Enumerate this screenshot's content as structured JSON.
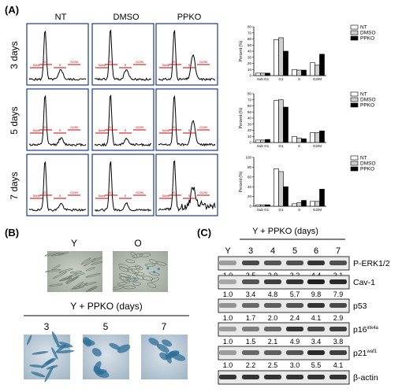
{
  "panel_labels": {
    "a": "(A)",
    "b": "(B)",
    "c": "(C)"
  },
  "panel_a": {
    "conditions": [
      "NT",
      "DMSO",
      "PPKO"
    ],
    "timepoints": [
      "3 days",
      "5 days",
      "7 days"
    ],
    "flow_gate_labels": [
      "Subs",
      "G1",
      "S",
      "G2/M"
    ]
  },
  "chart_data": [
    {
      "type": "bar",
      "panel": "A-3days",
      "title": "",
      "categories": [
        "Sub G1",
        "G1",
        "S",
        "G2/M"
      ],
      "ylabel": "Percent (%)",
      "xlabel": "",
      "ylim": [
        0,
        80
      ],
      "yticks": [
        "0",
        "10",
        "20",
        "30",
        "40",
        "50",
        "60",
        "70",
        "80"
      ],
      "legend": "top-right",
      "series": [
        {
          "name": "NT",
          "color": "#ffffff",
          "values": [
            4,
            59,
            10,
            21
          ]
        },
        {
          "name": "DMSO",
          "color": "#d0d0d0",
          "values": [
            4,
            62,
            9,
            17
          ]
        },
        {
          "name": "PPKO",
          "color": "#000000",
          "values": [
            4,
            40,
            9,
            35
          ]
        }
      ]
    },
    {
      "type": "bar",
      "panel": "A-5days",
      "title": "",
      "categories": [
        "Sub G1",
        "G1",
        "S",
        "G2/M"
      ],
      "ylabel": "Percent (%)",
      "xlabel": "",
      "ylim": [
        0,
        80
      ],
      "yticks": [
        "0",
        "10",
        "20",
        "30",
        "40",
        "50",
        "60",
        "70",
        "80"
      ],
      "legend": "top-right",
      "series": [
        {
          "name": "NT",
          "color": "#ffffff",
          "values": [
            4,
            69,
            10,
            16
          ]
        },
        {
          "name": "DMSO",
          "color": "#d0d0d0",
          "values": [
            4,
            70,
            7,
            16
          ]
        },
        {
          "name": "PPKO",
          "color": "#000000",
          "values": [
            5,
            58,
            6,
            19
          ]
        }
      ]
    },
    {
      "type": "bar",
      "panel": "A-7days",
      "title": "",
      "categories": [
        "Sub G1",
        "G1",
        "S",
        "G2/M"
      ],
      "ylabel": "Percent (%)",
      "xlabel": "",
      "ylim": [
        0,
        100
      ],
      "yticks": [
        "0",
        "20",
        "40",
        "60",
        "80",
        "100"
      ],
      "legend": "top-right",
      "series": [
        {
          "name": "NT",
          "color": "#ffffff",
          "values": [
            3,
            77,
            5,
            10
          ]
        },
        {
          "name": "DMSO",
          "color": "#d0d0d0",
          "values": [
            3,
            71,
            7,
            10
          ]
        },
        {
          "name": "PPKO",
          "color": "#000000",
          "values": [
            3,
            40,
            12,
            35
          ]
        }
      ]
    }
  ],
  "panel_b": {
    "top_labels": [
      "Y",
      "O"
    ],
    "subtitle": "Y + PPKO (days)",
    "days": [
      "3",
      "5",
      "7"
    ]
  },
  "panel_c": {
    "header": "Y + PPKO (days)",
    "lanes": [
      "Y",
      "3",
      "4",
      "5",
      "6",
      "7"
    ],
    "blots": [
      {
        "label": "P-ERK1/2",
        "sup": "",
        "values": [
          "1.0",
          "3.5",
          "2.9",
          "3.2",
          "4.4",
          "3.1"
        ]
      },
      {
        "label": "Cav-1",
        "sup": "",
        "values": [
          "1.0",
          "3.4",
          "4.8",
          "5.7",
          "9.8",
          "7.9"
        ]
      },
      {
        "label": "p53",
        "sup": "",
        "values": [
          "1.0",
          "1.7",
          "2.0",
          "2.4",
          "4.1",
          "2.9"
        ]
      },
      {
        "label": "p16",
        "sup": "ink4a",
        "values": [
          "1.0",
          "1.5",
          "2.1",
          "4.9",
          "3.4",
          "3.8"
        ]
      },
      {
        "label": "p21",
        "sup": "waf1",
        "values": [
          "1.0",
          "2.2",
          "2.5",
          "3.0",
          "5.5",
          "4.1"
        ]
      },
      {
        "label": "β-actin",
        "sup": "",
        "values": []
      }
    ],
    "blot_intensity": [
      [
        0.35,
        0.75,
        0.7,
        0.72,
        0.85,
        0.72
      ],
      [
        0.3,
        0.7,
        0.8,
        0.85,
        0.95,
        0.9
      ],
      [
        0.4,
        0.6,
        0.65,
        0.7,
        0.85,
        0.75
      ],
      [
        0.35,
        0.5,
        0.6,
        0.85,
        0.75,
        0.8
      ],
      [
        0.35,
        0.6,
        0.65,
        0.7,
        0.9,
        0.8
      ],
      [
        0.85,
        0.85,
        0.85,
        0.85,
        0.85,
        0.85
      ]
    ]
  },
  "colors": {
    "ink": "#000000",
    "flow_box": "#1a3a8a",
    "gate": "#cc0000",
    "stain_blue": "#2f6f95"
  }
}
